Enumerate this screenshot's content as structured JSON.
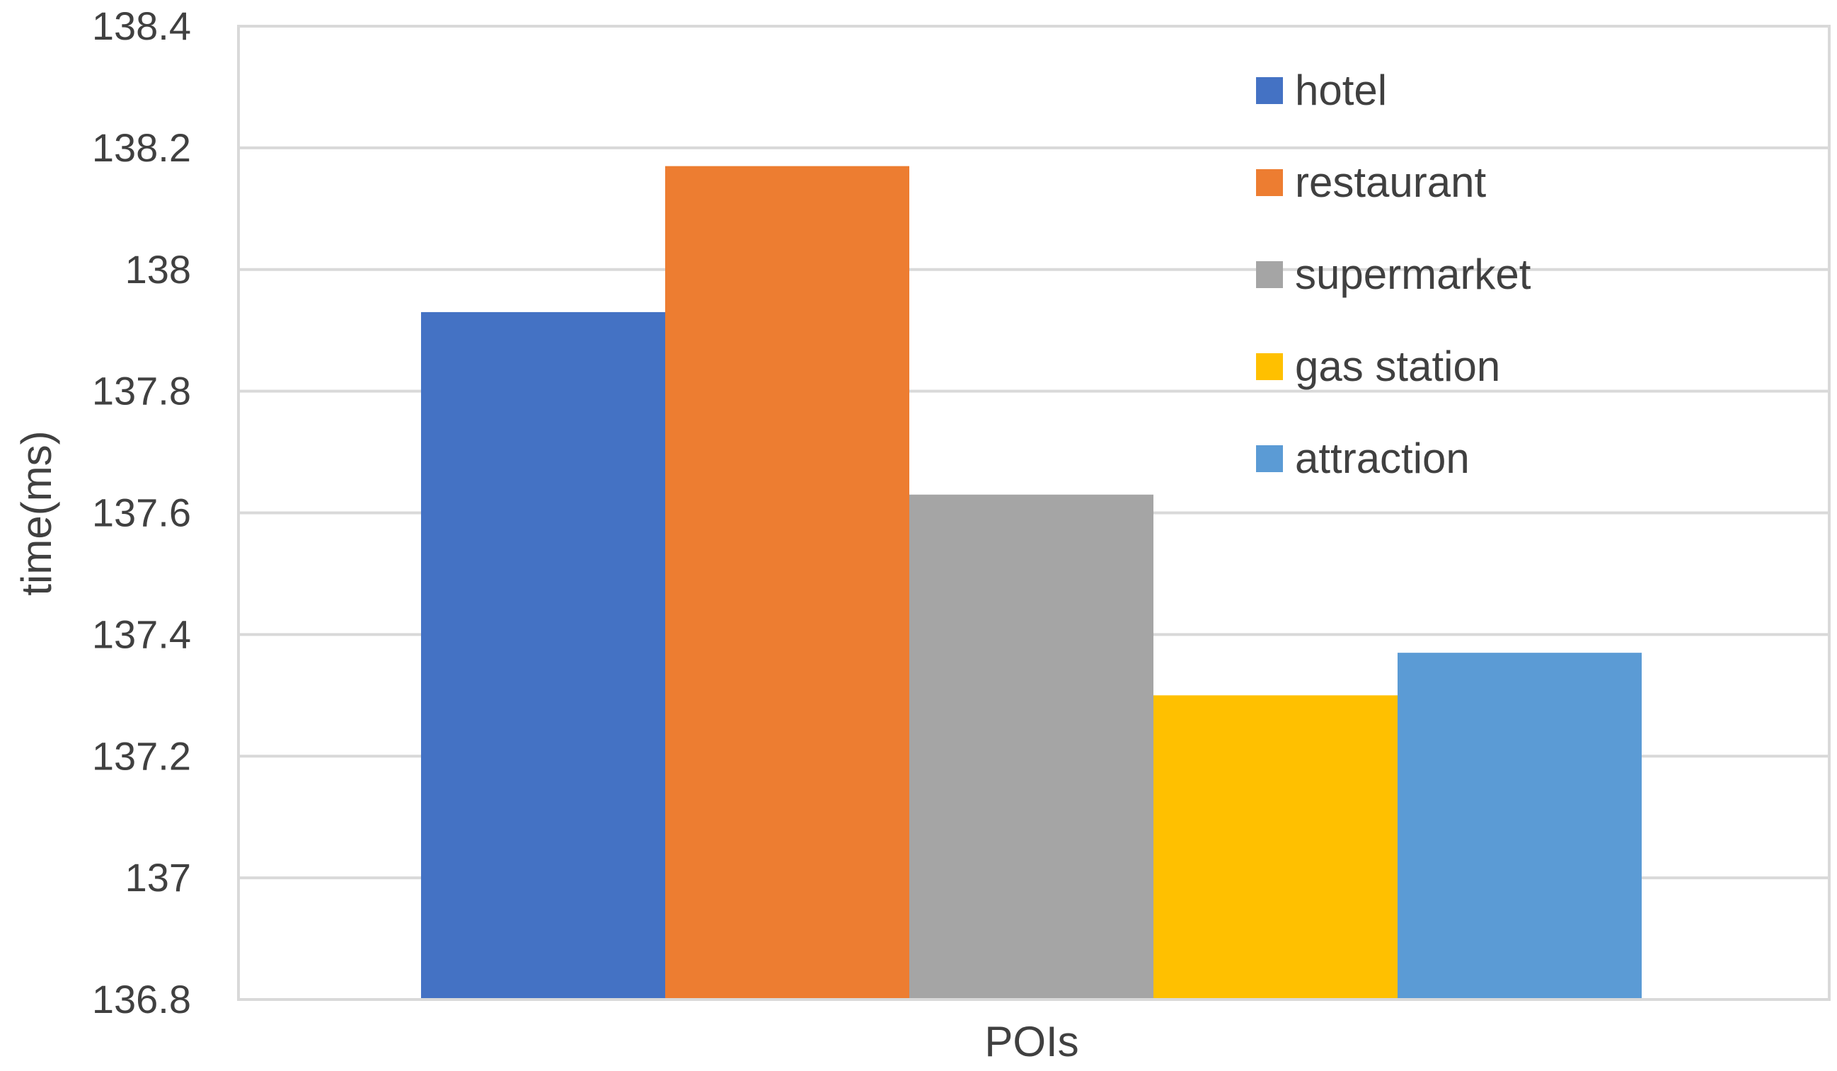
{
  "chart_data": {
    "type": "bar",
    "title": "",
    "xlabel": "POIs",
    "ylabel": "time(ms)",
    "categories": [
      "POIs"
    ],
    "ylim": [
      136.8,
      138.4
    ],
    "yticks": [
      "136.8",
      "137",
      "137.2",
      "137.4",
      "137.6",
      "137.8",
      "138",
      "138.2",
      "138.4"
    ],
    "grid": true,
    "legend_position": "top-right",
    "series": [
      {
        "name": "hotel",
        "values": [
          137.93
        ],
        "color": "#4472C4"
      },
      {
        "name": "restaurant",
        "values": [
          138.17
        ],
        "color": "#ED7D31"
      },
      {
        "name": "supermarket",
        "values": [
          137.63
        ],
        "color": "#A5A5A5"
      },
      {
        "name": "gas station",
        "values": [
          137.3
        ],
        "color": "#FFC000"
      },
      {
        "name": "attraction",
        "values": [
          137.37
        ],
        "color": "#5B9BD5"
      }
    ]
  }
}
